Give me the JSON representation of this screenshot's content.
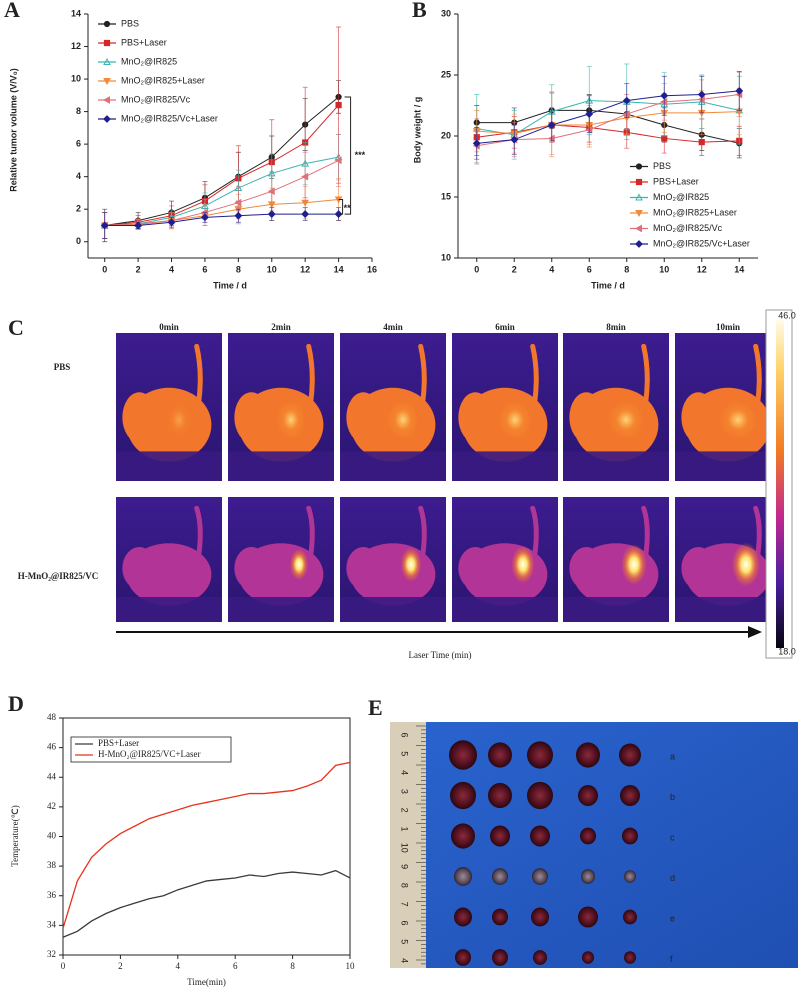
{
  "chart_data": [
    {
      "type": "line",
      "label": "A",
      "xlabel": "Time / d",
      "ylabel": "Relative tumor volume (V/V₀)",
      "x": [
        0,
        2,
        4,
        6,
        8,
        10,
        12,
        14
      ],
      "xlim": [
        -1,
        16
      ],
      "ylim": [
        -1,
        14
      ],
      "xticks": [
        0,
        2,
        4,
        6,
        8,
        10,
        12,
        14,
        16
      ],
      "yticks": [
        0,
        2,
        4,
        6,
        8,
        10,
        12,
        14
      ],
      "legend": "upper left",
      "markers": true,
      "annotations": [
        "***",
        "**"
      ],
      "series": [
        {
          "name": "PBS",
          "color": "#222222",
          "values": [
            1,
            1.3,
            1.8,
            2.7,
            4.0,
            5.2,
            7.2,
            8.9
          ],
          "errors": [
            1.0,
            0.5,
            0.7,
            1.0,
            1.5,
            1.3,
            1.6,
            1.0
          ]
        },
        {
          "name": "PBS+Laser",
          "color": "#d62728",
          "values": [
            1,
            1.2,
            1.6,
            2.5,
            3.9,
            4.9,
            6.1,
            8.4
          ],
          "errors": [
            0.8,
            0.4,
            0.6,
            1.0,
            2.0,
            2.6,
            3.4,
            4.8
          ]
        },
        {
          "name": "MnO₂@IR825",
          "color": "#3bb5b0",
          "values": [
            1,
            1.1,
            1.5,
            2.2,
            3.3,
            4.2,
            4.8,
            5.2
          ],
          "errors": [
            0.8,
            0.3,
            0.4,
            0.8,
            1.1,
            1.2,
            1.3,
            1.4
          ]
        },
        {
          "name": "MnO₂@IR825+Laser",
          "color": "#f08a3c",
          "values": [
            1,
            1.05,
            1.3,
            1.6,
            2.0,
            2.3,
            2.4,
            2.6
          ],
          "errors": [
            0.8,
            0.3,
            0.5,
            0.6,
            0.9,
            1.0,
            1.0,
            1.3
          ]
        },
        {
          "name": "MnO₂@IR825/Vc",
          "color": "#e0707a",
          "values": [
            1,
            1.1,
            1.3,
            1.8,
            2.4,
            3.1,
            4.0,
            5.0
          ],
          "errors": [
            0.8,
            0.3,
            0.5,
            0.8,
            1.0,
            1.2,
            1.5,
            1.6
          ]
        },
        {
          "name": "MnO₂@IR825/Vc+Laser",
          "color": "#1f1f8f",
          "values": [
            1,
            1.0,
            1.2,
            1.5,
            1.6,
            1.7,
            1.7,
            1.7
          ],
          "errors": [
            0.8,
            0.2,
            0.3,
            0.3,
            0.4,
            0.4,
            0.4,
            0.4
          ]
        }
      ]
    },
    {
      "type": "line",
      "label": "B",
      "xlabel": "Time / d",
      "ylabel": "Body weight / g",
      "x": [
        0,
        2,
        4,
        6,
        8,
        10,
        12,
        14
      ],
      "xlim": [
        -1,
        15
      ],
      "ylim": [
        10,
        30
      ],
      "xticks": [
        0,
        2,
        4,
        6,
        8,
        10,
        12,
        14
      ],
      "yticks": [
        10,
        15,
        20,
        25,
        30
      ],
      "legend": "lower right",
      "markers": true,
      "series": [
        {
          "name": "PBS",
          "color": "#222222",
          "values": [
            21.1,
            21.1,
            22.1,
            22.1,
            21.8,
            20.9,
            20.1,
            19.4
          ],
          "errors": [
            1.4,
            1.2,
            1.5,
            1.3,
            1.2,
            1.4,
            1.3,
            1.2
          ]
        },
        {
          "name": "PBS+Laser",
          "color": "#d62728",
          "values": [
            19.9,
            20.3,
            20.9,
            20.7,
            20.3,
            19.8,
            19.5,
            19.6
          ],
          "errors": [
            1.5,
            1.3,
            1.4,
            1.2,
            1.3,
            1.2,
            1.1,
            1.2
          ]
        },
        {
          "name": "MnO₂@IR825",
          "color": "#3bb5b0",
          "values": [
            20.6,
            20.1,
            22.0,
            22.9,
            22.8,
            22.6,
            22.8,
            22.1
          ],
          "errors": [
            2.8,
            2.0,
            2.2,
            2.8,
            3.1,
            2.6,
            2.2,
            2.8
          ]
        },
        {
          "name": "MnO₂@IR825+Laser",
          "color": "#f08a3c",
          "values": [
            20.4,
            20.2,
            20.9,
            20.9,
            21.5,
            21.9,
            21.9,
            22.0
          ],
          "errors": [
            1.7,
            1.6,
            2.6,
            1.6,
            1.4,
            1.6,
            1.8,
            1.9
          ]
        },
        {
          "name": "MnO₂@IR825/Vc",
          "color": "#e0707a",
          "values": [
            19.2,
            19.7,
            19.8,
            20.5,
            21.8,
            22.8,
            23.0,
            23.4
          ],
          "errors": [
            1.5,
            1.4,
            1.3,
            1.4,
            1.6,
            1.5,
            1.6,
            1.8
          ]
        },
        {
          "name": "MnO₂@IR825/Vc+Laser",
          "color": "#1f1f8f",
          "values": [
            19.4,
            19.7,
            20.9,
            21.8,
            22.9,
            23.3,
            23.4,
            23.7
          ],
          "errors": [
            1.3,
            1.2,
            1.3,
            1.5,
            1.4,
            1.6,
            1.5,
            1.6
          ]
        }
      ]
    },
    {
      "type": "line",
      "label": "D",
      "xlabel": "Time(min)",
      "ylabel": "Temperature(℃)",
      "x": [
        0,
        0.5,
        1,
        1.5,
        2,
        2.5,
        3,
        3.5,
        4,
        4.5,
        5,
        5.5,
        6,
        6.5,
        7,
        7.5,
        8,
        8.5,
        9,
        9.5,
        10
      ],
      "xlim": [
        0,
        10
      ],
      "ylim": [
        32,
        48
      ],
      "xticks": [
        0,
        2,
        4,
        6,
        8,
        10
      ],
      "yticks": [
        32,
        34,
        36,
        38,
        40,
        42,
        44,
        46,
        48
      ],
      "legend": "upper left",
      "markers": false,
      "series": [
        {
          "name": "PBS+Laser",
          "color": "#3a3a3a",
          "values": [
            33.2,
            33.6,
            34.3,
            34.8,
            35.2,
            35.5,
            35.8,
            36.0,
            36.4,
            36.7,
            37.0,
            37.1,
            37.2,
            37.4,
            37.3,
            37.5,
            37.6,
            37.5,
            37.4,
            37.7,
            37.2
          ]
        },
        {
          "name": "H-MnO₂@IR825/VC+Laser",
          "color": "#e8321e",
          "values": [
            33.8,
            37.0,
            38.6,
            39.5,
            40.2,
            40.7,
            41.2,
            41.5,
            41.8,
            42.1,
            42.3,
            42.5,
            42.7,
            42.9,
            42.9,
            43.0,
            43.1,
            43.4,
            43.8,
            44.8,
            45.0
          ]
        }
      ]
    }
  ],
  "panel_c": {
    "label": "C",
    "columns": [
      "0min",
      "2min",
      "4min",
      "6min",
      "8min",
      "10min"
    ],
    "rows": [
      "PBS",
      "H-MnO₂@IR825/VC"
    ],
    "axis_label": "Laser Time (min)",
    "scale_max": "46.0",
    "scale_min": "18.0"
  },
  "panel_e": {
    "label": "E",
    "ruler": [
      "6",
      "5",
      "4",
      "3",
      "2",
      "1",
      "10",
      "9",
      "8",
      "7",
      "6",
      "5",
      "4"
    ],
    "rows": [
      "a",
      "b",
      "c",
      "d",
      "e",
      "f"
    ]
  }
}
